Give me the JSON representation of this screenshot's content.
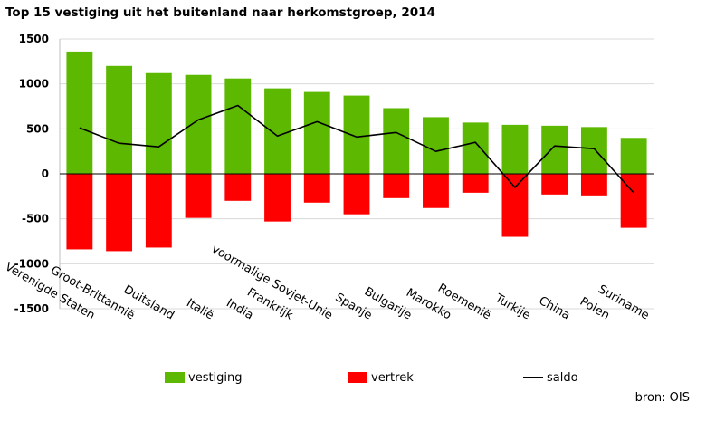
{
  "chart_data": {
    "type": "bar",
    "title": "Top 15 vestiging uit het buitenland naar herkomstgroep, 2014",
    "source": "bron: OIS",
    "categories": [
      "Verenigde Staten",
      "Groot-Brittannië",
      "Duitsland",
      "Italië",
      "India",
      "Frankrijk",
      "voormalige Sovjet-Unie",
      "Spanje",
      "Bulgarije",
      "Marokko",
      "Roemenië",
      "Turkije",
      "China",
      "Polen",
      "Suriname"
    ],
    "series": [
      {
        "name": "vestiging",
        "kind": "bar",
        "color": "#5cb800",
        "values": [
          1360,
          1200,
          1120,
          1100,
          1060,
          950,
          910,
          870,
          730,
          630,
          570,
          545,
          535,
          520,
          400
        ]
      },
      {
        "name": "vertrek",
        "kind": "bar",
        "color": "#ff0000",
        "values": [
          -840,
          -860,
          -820,
          -490,
          -300,
          -530,
          -320,
          -450,
          -270,
          -380,
          -210,
          -700,
          -230,
          -240,
          -600
        ]
      },
      {
        "name": "saldo",
        "kind": "line",
        "color": "#000000",
        "values": [
          510,
          340,
          300,
          600,
          760,
          420,
          580,
          410,
          460,
          250,
          350,
          -150,
          310,
          280,
          -210
        ]
      }
    ],
    "ylim": [
      -1500,
      1500
    ],
    "yticks": [
      -1500,
      -1000,
      -500,
      0,
      500,
      1000,
      1500
    ],
    "grid": true,
    "legend": "bottom"
  }
}
